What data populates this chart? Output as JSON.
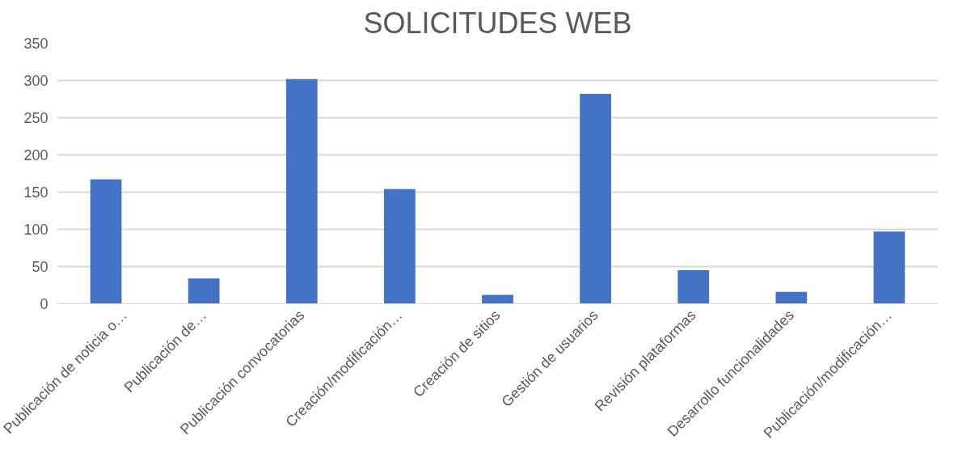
{
  "chart_data": {
    "type": "bar",
    "title": "SOLICITUDES WEB",
    "categories": [
      "Publicación de noticia o…",
      "Publicación de…",
      "Publicación convocatorias",
      "Creación/modificación…",
      "Creación de sitios",
      "Gestión de usuarios",
      "Revisión plataformas",
      "Desarrollo funcionalidades",
      "Publicación/modificación…"
    ],
    "values": [
      167,
      34,
      302,
      154,
      12,
      282,
      45,
      16,
      97
    ],
    "color": "#4472c4",
    "ylim": [
      0,
      350
    ],
    "yticks": [
      0,
      50,
      100,
      150,
      200,
      250,
      300,
      350
    ],
    "grid": "y"
  }
}
